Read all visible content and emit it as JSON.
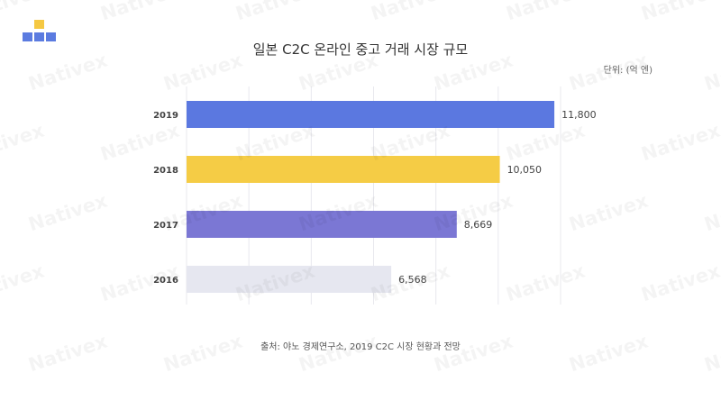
{
  "brand": {
    "watermark": "Nativex",
    "logo_colors": [
      "#F5C842",
      "#5B7BE0",
      "#5B7BE0",
      "#5B7BE0"
    ]
  },
  "chart_data": {
    "type": "bar",
    "orientation": "horizontal",
    "title": "일본 C2C 온라인 중고 거래 시장 규모",
    "unit_label": "단위: (억 엔)",
    "categories": [
      "2019",
      "2018",
      "2017",
      "2016"
    ],
    "values": [
      11800,
      10050,
      8669,
      6568
    ],
    "value_labels": [
      "11,800",
      "10,050",
      "8,669",
      "6,568"
    ],
    "colors": [
      "#5B78E0",
      "#F5CC45",
      "#7B77D4",
      "#E6E7F0"
    ],
    "xlim": [
      0,
      12000
    ],
    "grid": true,
    "legend": "none"
  },
  "source": "출처: 야노 경제연구소, 2019 C2C 시장 현황과 전망"
}
